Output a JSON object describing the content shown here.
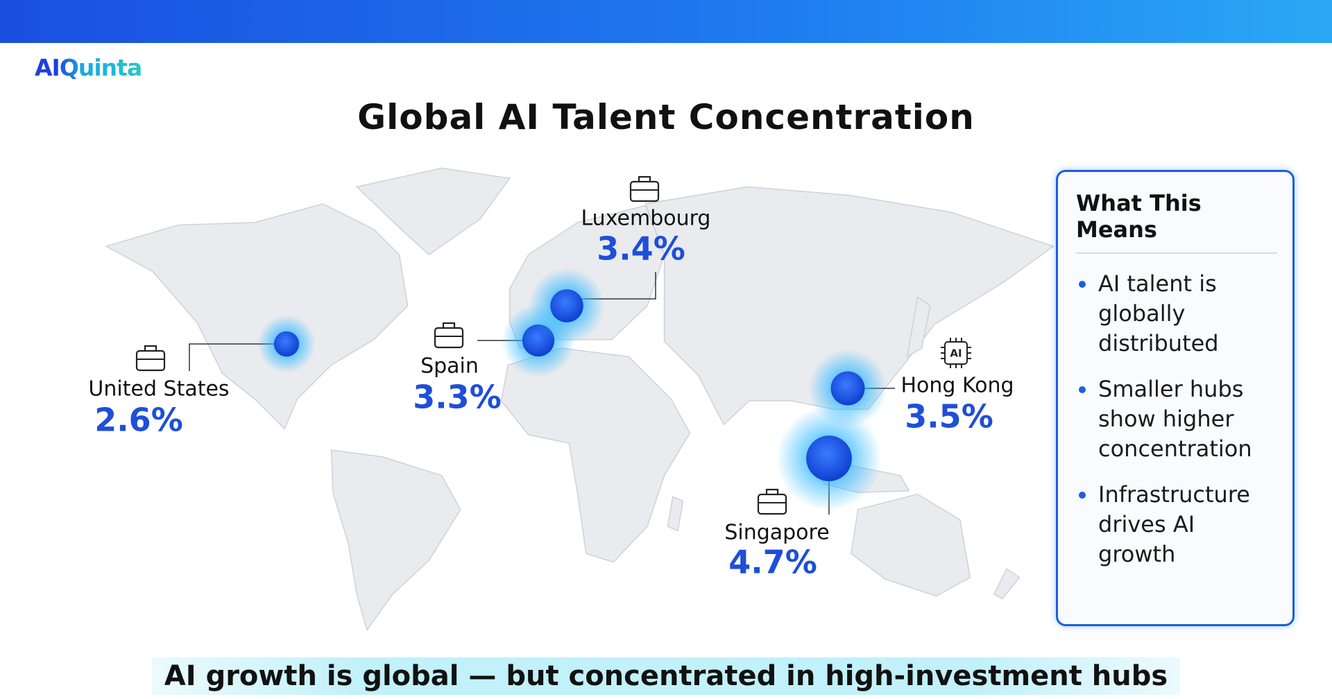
{
  "logo": "AIQuinta",
  "title": "Global AI Talent Concentration",
  "hubs": [
    {
      "name": "United States",
      "value": 2.6,
      "value_label": "2.6%"
    },
    {
      "name": "Spain",
      "value": 3.3,
      "value_label": "3.3%"
    },
    {
      "name": "Luxembourg",
      "value": 3.4,
      "value_label": "3.4%"
    },
    {
      "name": "Hong Kong",
      "value": 3.5,
      "value_label": "3.5%",
      "icon_label": "AI"
    },
    {
      "name": "Singapore",
      "value": 4.7,
      "value_label": "4.7%"
    }
  ],
  "panel": {
    "title": "What This Means",
    "bullets": [
      "AI talent is globally distributed",
      "Smaller hubs show higher concentration",
      "Infrastructure drives AI growth"
    ]
  },
  "footer": "AI growth is global — but concentrated in high-investment hubs"
}
